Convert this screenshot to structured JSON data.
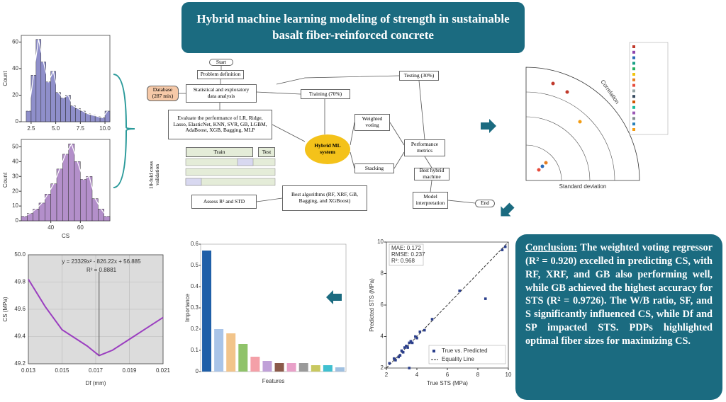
{
  "header": {
    "title": "Hybrid machine learning modeling of strength in sustainable basalt fiber-reinforced concrete"
  },
  "conclusion": {
    "heading": "Conclusion:",
    "text": "The weighted voting regressor (R² = 0.920) excelled in predicting CS, with RF, XRF, and GB also performing well, while GB achieved the highest accuracy for STS (R² = 0.9726). The W/B ratio, SF, and S significantly influenced CS, while Df and SP impacted STS. PDPs highlighted optimal fiber sizes for maximizing CS."
  },
  "flow": {
    "nodes": [
      "Start",
      "Problem definition",
      "Database (287 mix)",
      "Statistical and exploratory data analysis",
      "Training (70%)",
      "Testing (30%)",
      "Evaluate the performance of LR, Ridge, Lasso, ElasticNet, KNN, SVR, GB, LGBM, AdaBoost, XGB, Bagging, MLP",
      "Weighted voting",
      "Hybrid ML system",
      "Performance metrics",
      "Stacking",
      "Best hybrid machine",
      "Model interpretation",
      "End",
      "Train",
      "Test",
      "10-fold cross validation",
      "Assess R² and STD",
      "Best algorithms (RF, XRF, GB, Bagging, and XGBoost)"
    ]
  },
  "histograms": [
    {
      "y_label": "Count",
      "bins": [
        2.0,
        2.5,
        3.0,
        3.5,
        4.0,
        4.5,
        5.0,
        5.5,
        6.0,
        6.5,
        7.0,
        7.5,
        8.0,
        8.5,
        9.0,
        9.5,
        10.0,
        10.5
      ],
      "counts": [
        8,
        35,
        62,
        45,
        30,
        38,
        22,
        18,
        20,
        12,
        10,
        8,
        6,
        5,
        4,
        3,
        8
      ],
      "color": "#6a6ab8",
      "xlim": [
        1.5,
        10.5
      ],
      "ylim": [
        0,
        65
      ],
      "xticks": [
        {
          "value": 2.5,
          "label": "2.5"
        },
        {
          "value": 5,
          "label": "5.0"
        },
        {
          "value": 7.5,
          "label": "7.5"
        },
        {
          "value": 10,
          "label": "10.0"
        }
      ],
      "yticks": [
        0,
        20,
        40,
        60
      ]
    },
    {
      "y_label": "Count",
      "x_label": "CS",
      "bins": [
        20,
        24,
        28,
        32,
        36,
        40,
        44,
        48,
        52,
        56,
        60,
        64,
        68,
        72,
        76,
        80
      ],
      "counts": [
        3,
        5,
        8,
        12,
        18,
        25,
        35,
        45,
        52,
        40,
        28,
        30,
        15,
        8,
        3
      ],
      "color": "#9a6ab8",
      "xlim": [
        20,
        80
      ],
      "ylim": [
        0,
        55
      ],
      "xticks": [
        40,
        60
      ],
      "yticks": [
        0,
        10,
        20,
        30,
        40,
        50
      ]
    }
  ],
  "pdp": {
    "type": "line",
    "y_label": "CS (MPa)",
    "x_label": "Df (mm)",
    "equation": "y = 23329x² - 826.22x + 56.885",
    "r2": "R² = 0.8881",
    "x": [
      0.013,
      0.014,
      0.015,
      0.016,
      0.0165,
      0.0172,
      0.018,
      0.019,
      0.02,
      0.021
    ],
    "values": [
      49.82,
      49.62,
      49.45,
      49.37,
      49.33,
      49.26,
      49.3,
      49.38,
      49.46,
      49.54
    ],
    "color": "#9b3fc0",
    "xlim": [
      0.013,
      0.021
    ],
    "ylim": [
      49.2,
      50.0
    ],
    "xticks": [
      0.013,
      0.015,
      0.017,
      0.019,
      0.021
    ],
    "yticks": [
      49.2,
      49.4,
      49.6,
      49.8,
      {
        "value": 50,
        "label": "50.0"
      }
    ]
  },
  "importance": {
    "type": "bar",
    "y_label": "Importance",
    "x_label": "Features",
    "values": [
      0.57,
      0.2,
      0.18,
      0.13,
      0.07,
      0.05,
      0.04,
      0.04,
      0.04,
      0.03,
      0.03,
      0.02
    ],
    "colors": [
      "#1f5fa8",
      "#a9c4e8",
      "#f2c48a",
      "#8fc36a",
      "#f4a0a8",
      "#c0a0d8",
      "#8b5a4a",
      "#e8a0c8",
      "#9a9a9a",
      "#c8c860",
      "#40c0d0",
      "#a0c0e0"
    ],
    "ylim": [
      0,
      0.6
    ],
    "yticks": [
      0,
      0.1,
      0.2,
      0.3,
      0.4,
      0.5,
      0.6
    ]
  },
  "scatter": {
    "type": "scatter",
    "x_label": "True STS (MPa)",
    "y_label": "Predicted STS (MPa)",
    "metrics": [
      "MAE: 0.172",
      "RMSE: 0.237",
      "R²: 0.968"
    ],
    "legend": [
      "True vs. Predicted",
      "Equality Line"
    ],
    "x": [
      2.2,
      2.5,
      2.8,
      3.0,
      3.2,
      3.4,
      3.5,
      3.7,
      3.9,
      4.0,
      4.2,
      2.6,
      3.1,
      3.6,
      4.5,
      5.0,
      6.8,
      8.5,
      9.6,
      9.8,
      3.3,
      2.9,
      3.5
    ],
    "values": [
      2.3,
      2.6,
      2.7,
      3.1,
      3.3,
      3.3,
      3.6,
      3.6,
      4.0,
      3.9,
      4.3,
      2.5,
      3.0,
      3.7,
      4.4,
      5.1,
      6.9,
      6.4,
      9.5,
      9.7,
      3.4,
      2.8,
      2.0
    ],
    "color": "#2b3f8c",
    "xlim": [
      2,
      10
    ],
    "ylim": [
      2,
      10
    ],
    "xticks": [
      2,
      4,
      6,
      8,
      10
    ],
    "yticks": [
      2,
      4,
      6,
      8,
      10
    ]
  },
  "taylor": {
    "x_label": "Standard deviation",
    "arc_label": "Correlation"
  }
}
